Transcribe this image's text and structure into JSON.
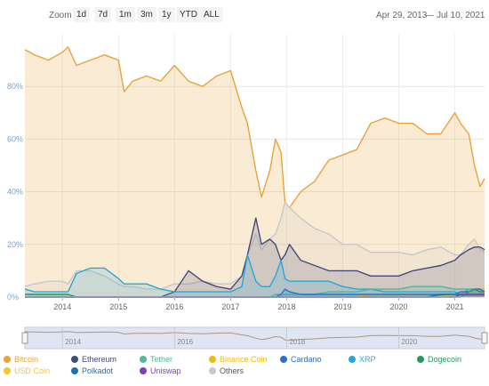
{
  "zoom": {
    "label": "Zoom",
    "buttons": [
      "1d",
      "7d",
      "1m",
      "3m",
      "1y",
      "YTD",
      "ALL"
    ]
  },
  "range": {
    "from": "Apr 29, 2013",
    "to": "Jul 10, 2021",
    "separator": "—"
  },
  "chart_data": {
    "type": "area",
    "title": "",
    "xlabel": "",
    "ylabel": "",
    "x_range": [
      2013.33,
      2021.53
    ],
    "ylim": [
      0,
      100
    ],
    "y_ticks": [
      0,
      20,
      40,
      60,
      80
    ],
    "y_tick_labels": [
      "0%",
      "20%",
      "40%",
      "60%",
      "80%"
    ],
    "x_ticks": [
      2014,
      2015,
      2016,
      2017,
      2018,
      2019,
      2020,
      2021
    ],
    "x_tick_labels": [
      "2014",
      "2015",
      "2016",
      "2017",
      "2018",
      "2019",
      "2020",
      "2021"
    ],
    "navigator_labels": [
      "2014",
      "2016",
      "2018",
      "2020"
    ],
    "grid": true,
    "legend_position": "bottom",
    "x": [
      2013.33,
      2013.5,
      2013.75,
      2014.0,
      2014.1,
      2014.25,
      2014.5,
      2014.75,
      2015.0,
      2015.1,
      2015.25,
      2015.5,
      2015.75,
      2016.0,
      2016.25,
      2016.5,
      2016.75,
      2017.0,
      2017.2,
      2017.3,
      2017.45,
      2017.55,
      2017.7,
      2017.8,
      2017.9,
      2017.97,
      2018.05,
      2018.25,
      2018.5,
      2018.75,
      2019.0,
      2019.25,
      2019.5,
      2019.75,
      2020.0,
      2020.25,
      2020.5,
      2020.75,
      2021.0,
      2021.1,
      2021.25,
      2021.35,
      2021.45,
      2021.53
    ],
    "series": [
      {
        "name": "Bitcoin",
        "color": "#e8a33a",
        "values": [
          94,
          92,
          90,
          93,
          95,
          88,
          90,
          92,
          90,
          78,
          82,
          84,
          82,
          88,
          82,
          80,
          84,
          86,
          72,
          66,
          48,
          38,
          48,
          60,
          55,
          36,
          34,
          40,
          44,
          52,
          54,
          56,
          66,
          68,
          66,
          66,
          62,
          62,
          70,
          66,
          62,
          50,
          42,
          45
        ]
      },
      {
        "name": "Ethereum",
        "color": "#434b7a",
        "values": [
          0,
          0,
          0,
          0,
          0,
          0,
          0,
          0,
          0,
          0,
          0,
          0,
          0,
          2,
          10,
          6,
          4,
          3,
          8,
          16,
          30,
          20,
          22,
          20,
          14,
          16,
          20,
          14,
          12,
          10,
          10,
          10,
          8,
          8,
          8,
          10,
          11,
          12,
          14,
          16,
          18,
          19,
          19,
          18
        ]
      },
      {
        "name": "Tether",
        "color": "#4db89a",
        "values": [
          0,
          0,
          0,
          0,
          0,
          0,
          0,
          0,
          0,
          0,
          0,
          0,
          0,
          0,
          0,
          0,
          0,
          0,
          0,
          0,
          0,
          0,
          0,
          1,
          1,
          1,
          1,
          1,
          1,
          2,
          2,
          2,
          3,
          3,
          3,
          4,
          4,
          4,
          3,
          3,
          3,
          3,
          3,
          3
        ]
      },
      {
        "name": "Binance Coin",
        "color": "#f0b90b",
        "values": [
          0,
          0,
          0,
          0,
          0,
          0,
          0,
          0,
          0,
          0,
          0,
          0,
          0,
          0,
          0,
          0,
          0,
          0,
          0,
          0,
          0,
          0,
          0,
          0,
          0,
          0,
          0,
          0,
          0,
          0,
          0,
          0,
          1,
          1,
          1,
          1,
          1,
          1,
          1,
          1,
          2,
          3,
          3,
          3
        ]
      },
      {
        "name": "Cardano",
        "color": "#2a6fd6",
        "values": [
          0,
          0,
          0,
          0,
          0,
          0,
          0,
          0,
          0,
          0,
          0,
          0,
          0,
          0,
          0,
          0,
          0,
          0,
          0,
          0,
          0,
          0,
          0,
          0,
          1,
          3,
          2,
          1,
          1,
          1,
          1,
          1,
          1,
          1,
          1,
          1,
          1,
          1,
          1,
          2,
          2,
          3,
          3,
          2
        ]
      },
      {
        "name": "XRP",
        "color": "#27a7d8",
        "values": [
          3,
          2,
          2,
          2,
          2,
          9,
          11,
          11,
          7,
          5,
          5,
          5,
          3,
          2,
          2,
          2,
          2,
          2,
          4,
          16,
          6,
          4,
          4,
          8,
          14,
          7,
          6,
          6,
          6,
          6,
          4,
          3,
          3,
          2,
          2,
          2,
          2,
          2,
          2,
          1,
          3,
          3,
          3,
          2
        ]
      },
      {
        "name": "Dogecoin",
        "color": "#26985d",
        "values": [
          1,
          1,
          1,
          1,
          1,
          0,
          0,
          0,
          0,
          0,
          0,
          0,
          0,
          0,
          0,
          0,
          0,
          0,
          0,
          0,
          0,
          0,
          0,
          0,
          0,
          0,
          0,
          0,
          0,
          0,
          0,
          0,
          0,
          0,
          0,
          0,
          0,
          0,
          0,
          0,
          2,
          3,
          2,
          2
        ]
      },
      {
        "name": "USD Coin",
        "color": "#f7c52c",
        "values": [
          0,
          0,
          0,
          0,
          0,
          0,
          0,
          0,
          0,
          0,
          0,
          0,
          0,
          0,
          0,
          0,
          0,
          0,
          0,
          0,
          0,
          0,
          0,
          0,
          0,
          0,
          0,
          0,
          0,
          0,
          0,
          0,
          0,
          0,
          0,
          0,
          0,
          0,
          1,
          1,
          1,
          1,
          1,
          1
        ]
      },
      {
        "name": "Polkadot",
        "color": "#1d6fb0",
        "values": [
          0,
          0,
          0,
          0,
          0,
          0,
          0,
          0,
          0,
          0,
          0,
          0,
          0,
          0,
          0,
          0,
          0,
          0,
          0,
          0,
          0,
          0,
          0,
          0,
          0,
          0,
          0,
          0,
          0,
          0,
          0,
          0,
          0,
          0,
          0,
          0,
          0,
          1,
          1,
          1,
          1,
          1,
          1,
          1
        ]
      },
      {
        "name": "Uniswap",
        "color": "#7b3fbf",
        "values": [
          0,
          0,
          0,
          0,
          0,
          0,
          0,
          0,
          0,
          0,
          0,
          0,
          0,
          0,
          0,
          0,
          0,
          0,
          0,
          0,
          0,
          0,
          0,
          0,
          0,
          0,
          0,
          0,
          0,
          0,
          0,
          0,
          0,
          0,
          0,
          0,
          0,
          0,
          0,
          1,
          1,
          1,
          1,
          1
        ]
      },
      {
        "name": "Others",
        "color": "#c8c8c8",
        "values": [
          4,
          5,
          6,
          6,
          5,
          10,
          10,
          8,
          5,
          4,
          4,
          3,
          3,
          5,
          5,
          6,
          5,
          5,
          8,
          16,
          24,
          18,
          22,
          24,
          30,
          36,
          34,
          30,
          26,
          24,
          20,
          20,
          17,
          17,
          17,
          16,
          18,
          19,
          16,
          16,
          20,
          22,
          18,
          17
        ]
      }
    ]
  }
}
